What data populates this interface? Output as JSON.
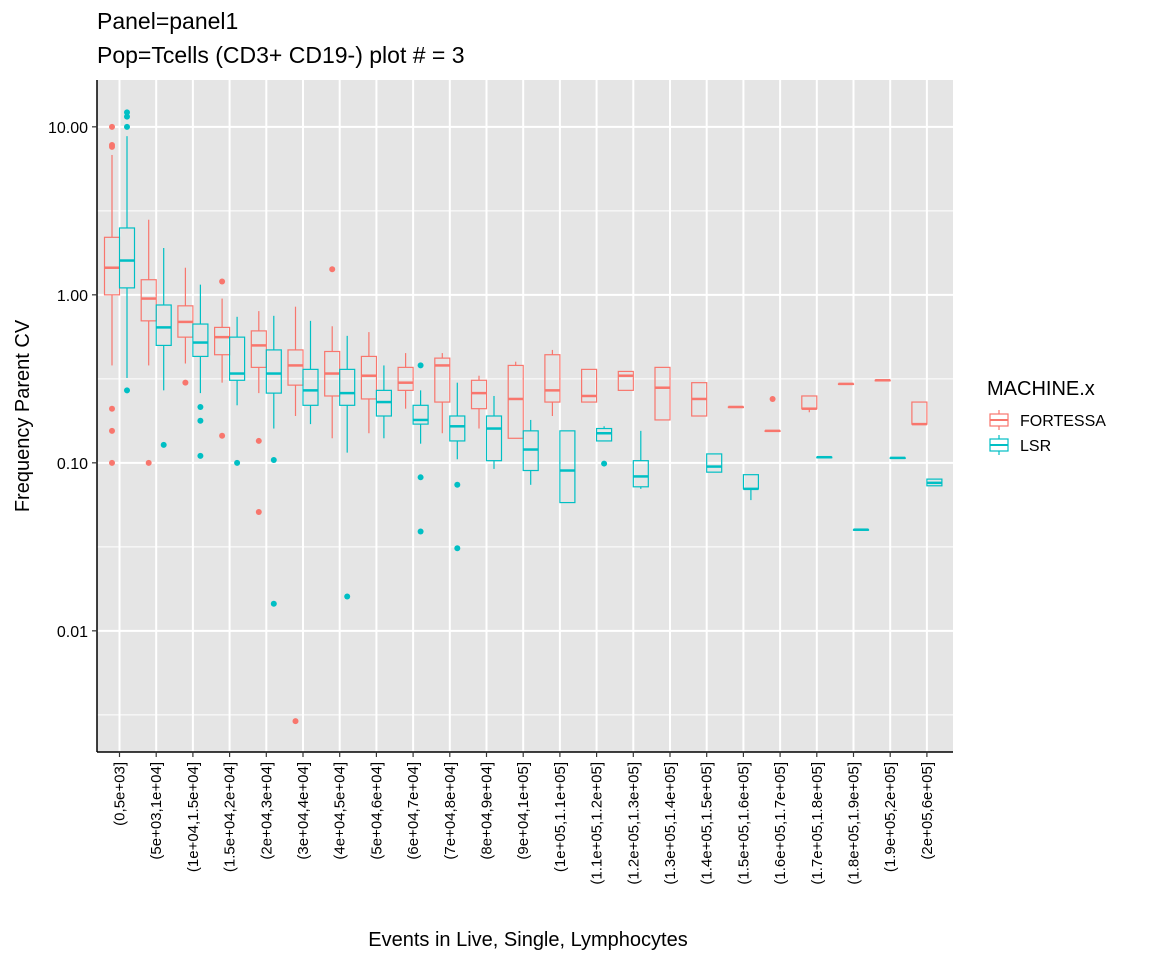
{
  "chart_data": {
    "type": "boxplot",
    "title": "Panel=panel1",
    "subtitle": "Pop=Tcells (CD3+ CD19-) plot # = 3",
    "xlabel": "Events in Live, Single, Lymphocytes",
    "ylabel": "Frequency Parent CV",
    "y_scale": "log10",
    "ylim": [
      0.0019,
      19
    ],
    "y_ticks": [
      0.01,
      0.1,
      1,
      10
    ],
    "y_tick_labels": [
      "0.01",
      "0.10",
      "1.00",
      "10.00"
    ],
    "grid": true,
    "legend": {
      "title": "MACHINE.x",
      "position": "right"
    },
    "categories": [
      "(0,5e+03]",
      "(5e+03,1e+04]",
      "(1e+04,1.5e+04]",
      "(1.5e+04,2e+04]",
      "(2e+04,3e+04]",
      "(3e+04,4e+04]",
      "(4e+04,5e+04]",
      "(5e+04,6e+04]",
      "(6e+04,7e+04]",
      "(7e+04,8e+04]",
      "(8e+04,9e+04]",
      "(9e+04,1e+05]",
      "(1e+05,1.1e+05]",
      "(1.1e+05,1.2e+05]",
      "(1.2e+05,1.3e+05]",
      "(1.3e+05,1.4e+05]",
      "(1.4e+05,1.5e+05]",
      "(1.5e+05,1.6e+05]",
      "(1.6e+05,1.7e+05]",
      "(1.7e+05,1.8e+05]",
      "(1.8e+05,1.9e+05]",
      "(1.9e+05,2e+05]",
      "(2e+05,6e+05]"
    ],
    "series": [
      {
        "name": "FORTESSA",
        "color": "#F8766D",
        "boxes": [
          {
            "cat": 0,
            "lo": 0.38,
            "q1": 1.0,
            "med": 1.45,
            "q3": 2.2,
            "hi": 6.8,
            "out": [
              10,
              7.8,
              7.6,
              0.21,
              0.155,
              0.1
            ]
          },
          {
            "cat": 1,
            "lo": 0.38,
            "q1": 0.7,
            "med": 0.95,
            "q3": 1.23,
            "hi": 2.8,
            "out": [
              0.1
            ]
          },
          {
            "cat": 2,
            "lo": 0.39,
            "q1": 0.56,
            "med": 0.69,
            "q3": 0.86,
            "hi": 1.45,
            "out": [
              0.3
            ]
          },
          {
            "cat": 3,
            "lo": 0.3,
            "q1": 0.44,
            "med": 0.56,
            "q3": 0.64,
            "hi": 0.95,
            "out": [
              1.2,
              0.145
            ]
          },
          {
            "cat": 4,
            "lo": 0.26,
            "q1": 0.37,
            "med": 0.5,
            "q3": 0.61,
            "hi": 0.8,
            "out": [
              0.135,
              0.051
            ]
          },
          {
            "cat": 5,
            "lo": 0.19,
            "q1": 0.29,
            "med": 0.38,
            "q3": 0.47,
            "hi": 0.85,
            "out": [
              0.0029
            ]
          },
          {
            "cat": 6,
            "lo": 0.14,
            "q1": 0.25,
            "med": 0.34,
            "q3": 0.46,
            "hi": 0.65,
            "out": [
              1.42
            ]
          },
          {
            "cat": 7,
            "lo": 0.15,
            "q1": 0.24,
            "med": 0.33,
            "q3": 0.43,
            "hi": 0.6,
            "out": []
          },
          {
            "cat": 8,
            "lo": 0.21,
            "q1": 0.27,
            "med": 0.3,
            "q3": 0.37,
            "hi": 0.45,
            "out": []
          },
          {
            "cat": 9,
            "lo": 0.15,
            "q1": 0.23,
            "med": 0.38,
            "q3": 0.42,
            "hi": 0.45,
            "out": []
          },
          {
            "cat": 10,
            "lo": 0.16,
            "q1": 0.21,
            "med": 0.26,
            "q3": 0.31,
            "hi": 0.33,
            "out": []
          },
          {
            "cat": 11,
            "lo": 0.14,
            "q1": 0.14,
            "med": 0.24,
            "q3": 0.38,
            "hi": 0.4,
            "out": []
          },
          {
            "cat": 12,
            "lo": 0.19,
            "q1": 0.23,
            "med": 0.27,
            "q3": 0.44,
            "hi": 0.47,
            "out": []
          },
          {
            "cat": 13,
            "lo": 0.23,
            "q1": 0.23,
            "med": 0.25,
            "q3": 0.36,
            "hi": 0.36,
            "out": []
          },
          {
            "cat": 14,
            "lo": 0.27,
            "q1": 0.27,
            "med": 0.33,
            "q3": 0.35,
            "hi": 0.35,
            "out": []
          },
          {
            "cat": 15,
            "lo": 0.18,
            "q1": 0.18,
            "med": 0.28,
            "q3": 0.37,
            "hi": 0.37,
            "out": []
          },
          {
            "cat": 16,
            "lo": 0.19,
            "q1": 0.19,
            "med": 0.24,
            "q3": 0.3,
            "hi": 0.3,
            "out": []
          },
          {
            "cat": 17,
            "lo": 0.215,
            "q1": 0.215,
            "med": 0.215,
            "q3": 0.215,
            "hi": 0.215,
            "out": []
          },
          {
            "cat": 18,
            "lo": 0.155,
            "q1": 0.155,
            "med": 0.155,
            "q3": 0.155,
            "hi": 0.155,
            "out": [
              0.24
            ]
          },
          {
            "cat": 19,
            "lo": 0.2,
            "q1": 0.21,
            "med": 0.21,
            "q3": 0.25,
            "hi": 0.25,
            "out": []
          },
          {
            "cat": 20,
            "lo": 0.295,
            "q1": 0.295,
            "med": 0.295,
            "q3": 0.295,
            "hi": 0.295,
            "out": []
          },
          {
            "cat": 21,
            "lo": 0.31,
            "q1": 0.31,
            "med": 0.31,
            "q3": 0.31,
            "hi": 0.31,
            "out": []
          },
          {
            "cat": 22,
            "lo": 0.17,
            "q1": 0.17,
            "med": 0.17,
            "q3": 0.23,
            "hi": 0.23,
            "out": []
          }
        ]
      },
      {
        "name": "LSR",
        "color": "#00BFC4",
        "boxes": [
          {
            "cat": 0,
            "lo": 0.32,
            "q1": 1.1,
            "med": 1.6,
            "q3": 2.5,
            "hi": 8.8,
            "out": [
              12.2,
              11.5,
              10.0,
              0.27
            ]
          },
          {
            "cat": 1,
            "lo": 0.27,
            "q1": 0.5,
            "med": 0.64,
            "q3": 0.87,
            "hi": 1.9,
            "out": [
              0.128
            ]
          },
          {
            "cat": 2,
            "lo": 0.26,
            "q1": 0.43,
            "med": 0.52,
            "q3": 0.67,
            "hi": 1.15,
            "out": [
              0.215,
              0.178,
              0.11
            ]
          },
          {
            "cat": 3,
            "lo": 0.22,
            "q1": 0.31,
            "med": 0.34,
            "q3": 0.56,
            "hi": 0.74,
            "out": [
              0.1
            ]
          },
          {
            "cat": 4,
            "lo": 0.16,
            "q1": 0.26,
            "med": 0.34,
            "q3": 0.47,
            "hi": 0.75,
            "out": [
              0.104,
              0.0145
            ]
          },
          {
            "cat": 5,
            "lo": 0.17,
            "q1": 0.22,
            "med": 0.27,
            "q3": 0.36,
            "hi": 0.7,
            "out": []
          },
          {
            "cat": 6,
            "lo": 0.115,
            "q1": 0.22,
            "med": 0.26,
            "q3": 0.36,
            "hi": 0.57,
            "out": [
              0.016
            ]
          },
          {
            "cat": 7,
            "lo": 0.14,
            "q1": 0.19,
            "med": 0.23,
            "q3": 0.27,
            "hi": 0.38,
            "out": []
          },
          {
            "cat": 8,
            "lo": 0.13,
            "q1": 0.17,
            "med": 0.18,
            "q3": 0.22,
            "hi": 0.27,
            "out": [
              0.38,
              0.082,
              0.039
            ]
          },
          {
            "cat": 9,
            "lo": 0.105,
            "q1": 0.135,
            "med": 0.165,
            "q3": 0.19,
            "hi": 0.3,
            "out": [
              0.074,
              0.031
            ]
          },
          {
            "cat": 10,
            "lo": 0.092,
            "q1": 0.103,
            "med": 0.16,
            "q3": 0.19,
            "hi": 0.25,
            "out": []
          },
          {
            "cat": 11,
            "lo": 0.074,
            "q1": 0.09,
            "med": 0.12,
            "q3": 0.155,
            "hi": 0.18,
            "out": []
          },
          {
            "cat": 12,
            "lo": 0.058,
            "q1": 0.058,
            "med": 0.09,
            "q3": 0.155,
            "hi": 0.155,
            "out": []
          },
          {
            "cat": 13,
            "lo": 0.135,
            "q1": 0.135,
            "med": 0.15,
            "q3": 0.16,
            "hi": 0.165,
            "out": [
              0.099
            ]
          },
          {
            "cat": 14,
            "lo": 0.07,
            "q1": 0.072,
            "med": 0.083,
            "q3": 0.103,
            "hi": 0.155,
            "out": []
          },
          {
            "cat": 16,
            "lo": 0.088,
            "q1": 0.088,
            "med": 0.095,
            "q3": 0.113,
            "hi": 0.113,
            "out": []
          },
          {
            "cat": 17,
            "lo": 0.06,
            "q1": 0.07,
            "med": 0.07,
            "q3": 0.085,
            "hi": 0.085,
            "out": []
          },
          {
            "cat": 19,
            "lo": 0.108,
            "q1": 0.108,
            "med": 0.108,
            "q3": 0.108,
            "hi": 0.108,
            "out": []
          },
          {
            "cat": 20,
            "lo": 0.04,
            "q1": 0.04,
            "med": 0.04,
            "q3": 0.04,
            "hi": 0.04,
            "out": []
          },
          {
            "cat": 21,
            "lo": 0.107,
            "q1": 0.107,
            "med": 0.107,
            "q3": 0.107,
            "hi": 0.107,
            "out": []
          },
          {
            "cat": 22,
            "lo": 0.073,
            "q1": 0.073,
            "med": 0.076,
            "q3": 0.08,
            "hi": 0.08,
            "out": []
          }
        ]
      }
    ]
  }
}
